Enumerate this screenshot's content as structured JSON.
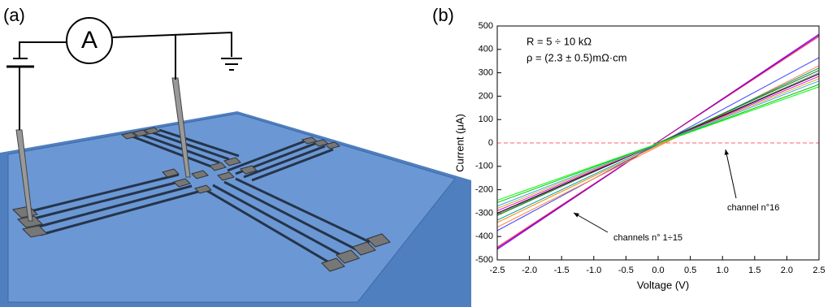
{
  "panel_labels": [
    "(a)",
    "(b)"
  ],
  "ammeter_label": "A",
  "chart_data": {
    "type": "line",
    "x_label": "Voltage (V)",
    "y_label": "Current (μA)",
    "notes": [
      "R = 5 ÷ 10 kΩ",
      "ρ = (2.3 ± 0.5)mΩ·cm"
    ],
    "annotations": [
      "channel n°16",
      "channels n° 1÷15"
    ],
    "x": [
      -2.5,
      2.5
    ],
    "xlim": [
      -2.5,
      2.5
    ],
    "ylim": [
      -500,
      500
    ],
    "xticks": [
      -2.5,
      {
        "value": -2.0,
        "label": "-2.0"
      },
      -1.5,
      {
        "value": -1.0,
        "label": "-1.0"
      },
      -0.5,
      {
        "value": 0.0,
        "label": "0.0"
      },
      0.5,
      {
        "value": 1.0,
        "label": "1.0"
      },
      1.5,
      {
        "value": 2.0,
        "label": "2.0"
      },
      2.5
    ],
    "yticks": [
      -500,
      -400,
      -300,
      -200,
      -100,
      0,
      100,
      200,
      300,
      400,
      500
    ],
    "series": [
      {
        "color": "#8000ff",
        "values": [
          -455,
          465
        ]
      },
      {
        "color": "#ff4060",
        "values": [
          -445,
          455
        ]
      },
      {
        "color": "#a000a0",
        "values": [
          -450,
          460
        ]
      },
      {
        "color": "#4040ff",
        "values": [
          -375,
          365
        ]
      },
      {
        "color": "#ff8040",
        "values": [
          -360,
          330
        ]
      },
      {
        "color": "#ff8000",
        "values": [
          -340,
          320
        ]
      },
      {
        "color": "#00a0a0",
        "values": [
          -330,
          320
        ]
      },
      {
        "color": "#008000",
        "values": [
          -310,
          310
        ]
      },
      {
        "color": "#808080",
        "values": [
          -305,
          300
        ]
      },
      {
        "color": "#000000",
        "values": [
          -300,
          295
        ]
      },
      {
        "color": "#ff00ff",
        "values": [
          -290,
          285
        ]
      },
      {
        "color": "#c0c000",
        "values": [
          -280,
          275
        ]
      },
      {
        "color": "#40a0ff",
        "values": [
          -270,
          265
        ]
      },
      {
        "color": "#00c000",
        "values": [
          -255,
          250
        ]
      },
      {
        "color": "#00ff00",
        "values": [
          -245,
          240
        ]
      },
      {
        "color": "#ff6070",
        "values": [
          0,
          0
        ],
        "dashed": true
      }
    ]
  }
}
